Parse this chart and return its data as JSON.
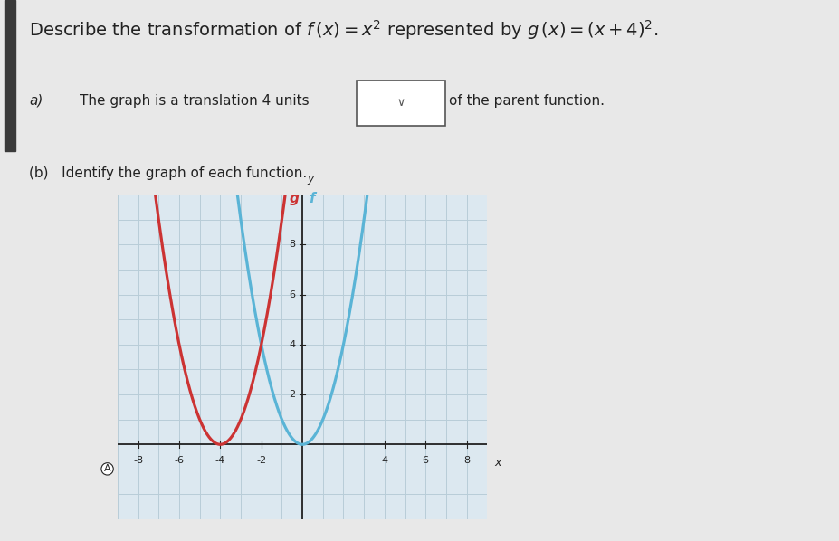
{
  "title": "Describe the transformation of $f\\,(x) = x^2$ represented by $g\\,(x) = (x+4)^2$.",
  "part_a_label": "a)",
  "part_a_text1": "The graph is a translation 4 units",
  "part_a_text2": "of the parent function.",
  "part_b_text": "(b)   Identify the graph of each function.",
  "dropdown_symbol": "∨",
  "f_label": "f",
  "g_label": "g",
  "f_color": "#5ab4d6",
  "g_color": "#cc3333",
  "bg_color": "#e8e8e8",
  "graph_bg": "#dce8f0",
  "xmin": -9,
  "xmax": 9,
  "ymin": -3,
  "ymax": 10,
  "xticks": [
    -8,
    -6,
    -4,
    -2,
    4,
    6,
    8
  ],
  "yticks": [
    2,
    4,
    6,
    8
  ],
  "grid_color": "#b8cdd8",
  "axis_color": "#222222",
  "text_color": "#222222",
  "title_fontsize": 14,
  "label_fontsize": 11,
  "tick_fontsize": 8
}
